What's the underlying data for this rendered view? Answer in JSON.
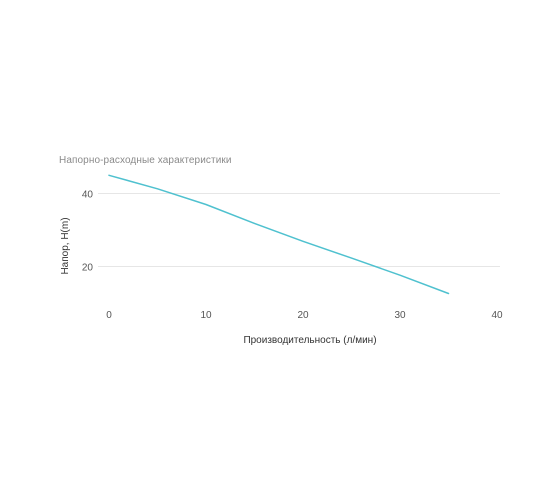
{
  "chart_data": {
    "type": "line",
    "title": "Напорно-расходные характеристики",
    "xlabel": "Производительность (л/мин)",
    "ylabel": "Напор, H(m)",
    "xlim": [
      0,
      40
    ],
    "ylim": [
      13,
      47
    ],
    "x_ticks": [
      "0",
      "10",
      "20",
      "30",
      "40"
    ],
    "y_ticks": [
      "20",
      "40"
    ],
    "grid": true,
    "legend": "none",
    "series": [
      {
        "color": "#4fc1cf",
        "x": [
          0,
          5,
          10,
          15,
          20,
          25,
          30,
          35
        ],
        "y": [
          45,
          41.3,
          37,
          31.8,
          26.9,
          22.3,
          17.6,
          12.6
        ]
      }
    ]
  }
}
